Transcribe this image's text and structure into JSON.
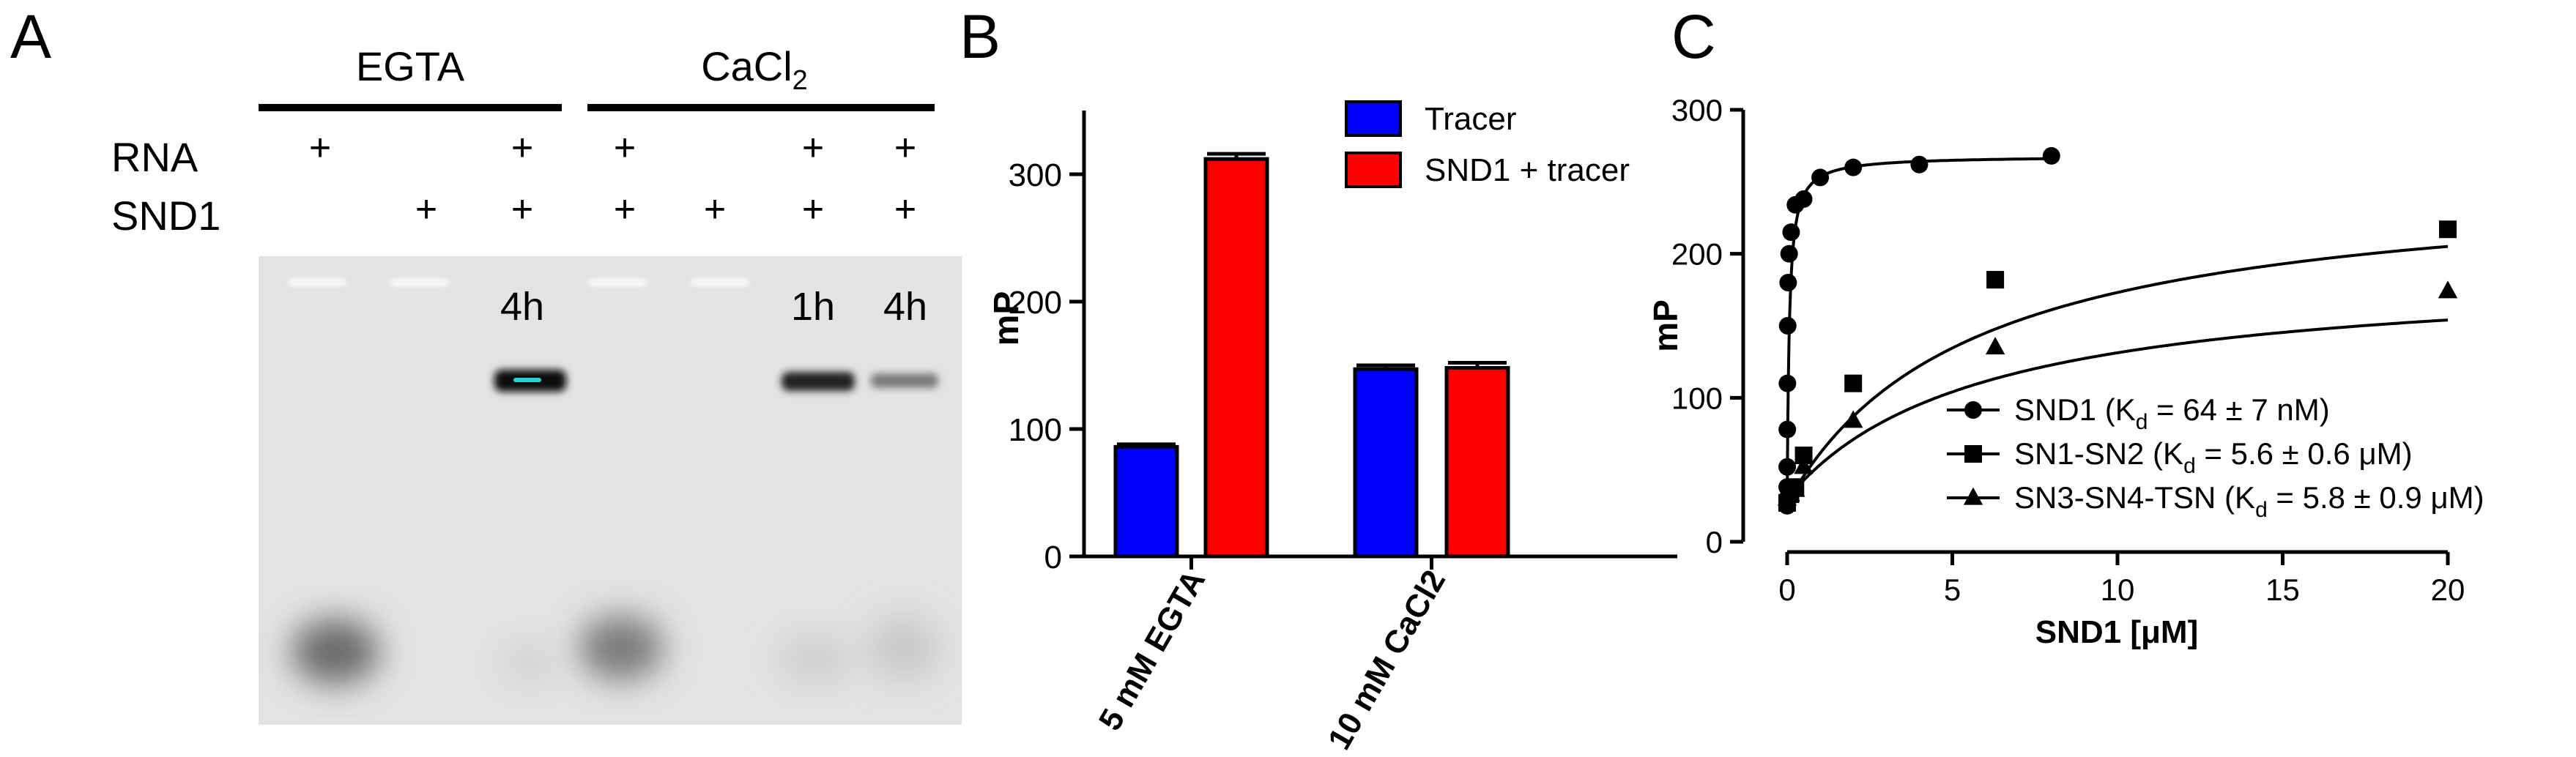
{
  "panels": {
    "a": {
      "letter": "A",
      "conditions": [
        "EGTA",
        "CaCl"
      ],
      "ca_subscript": "2",
      "row_labels": [
        "RNA",
        "SND1"
      ],
      "lanes": [
        {
          "rna": "+",
          "snd1": "",
          "time": ""
        },
        {
          "rna": "",
          "snd1": "+",
          "time": ""
        },
        {
          "rna": "+",
          "snd1": "+",
          "time": "4h"
        },
        {
          "rna": "+",
          "snd1": "+",
          "time": ""
        },
        {
          "rna": "",
          "snd1": "+",
          "time": ""
        },
        {
          "rna": "+",
          "snd1": "+",
          "time": "1h"
        },
        {
          "rna": "+",
          "snd1": "+",
          "time": "4h"
        }
      ]
    },
    "b": {
      "letter": "B"
    },
    "c": {
      "letter": "C"
    }
  },
  "colors": {
    "tracer": "#0000ff",
    "snd1_tracer": "#ff0000",
    "gel_bg": "#e5e5e5",
    "band": "#111111",
    "band_core": "#22d3d3"
  },
  "chart_data": [
    {
      "type": "bar",
      "categories": [
        "5 mM EGTA",
        "10 mM CaCl2"
      ],
      "series": [
        {
          "name": "Tracer",
          "values": [
            86,
            147
          ],
          "errors": [
            2,
            3
          ]
        },
        {
          "name": "SND1 + tracer",
          "values": [
            312,
            148
          ],
          "errors": [
            4,
            4
          ]
        }
      ],
      "xlabel": "",
      "ylabel": "mP",
      "ylim": [
        0,
        350
      ],
      "yticks": [
        0,
        100,
        200,
        300
      ],
      "legend": "top-right",
      "grid": false
    },
    {
      "type": "scatter",
      "xlabel": "SND1 [μM]",
      "ylabel": "mP",
      "xlim": [
        0,
        20
      ],
      "ylim": [
        0,
        300
      ],
      "xticks": [
        0,
        5,
        10,
        15,
        20
      ],
      "yticks": [
        0,
        100,
        200,
        300
      ],
      "legend": "bottom-right",
      "grid": false,
      "series": [
        {
          "marker": "circle",
          "label_prefix": "SND1 (K",
          "label_sub": "d",
          "label_suffix": " = 64 ± 7 nM)",
          "x": [
            0.0,
            0.0005,
            0.001,
            0.002,
            0.004,
            0.008,
            0.016,
            0.03,
            0.06,
            0.12,
            0.25,
            0.5,
            1.0,
            2.0,
            4.0,
            8.0
          ],
          "y": [
            25,
            30,
            38,
            52,
            78,
            110,
            150,
            180,
            200,
            215,
            234,
            238,
            253,
            260,
            262,
            268
          ],
          "fit": {
            "bmax": 268,
            "kd": 0.064,
            "base": 25
          }
        },
        {
          "marker": "square",
          "label_prefix": "SN1-SN2 (K",
          "label_sub": "d",
          "label_suffix": " = 5.6 ± 0.6 μM)",
          "x": [
            0.0,
            0.1,
            0.25,
            0.5,
            2.0,
            6.3,
            20.0
          ],
          "y": [
            27,
            33,
            38,
            60,
            110,
            182,
            217
          ],
          "fit": {
            "bmax": 255,
            "kd": 5.6,
            "base": 27
          }
        },
        {
          "marker": "triangle",
          "label_prefix": "SN3-SN4-TSN (K",
          "label_sub": "d",
          "label_suffix": " = 5.8 ± 0.9 μM)",
          "x": [
            0.0,
            0.1,
            0.25,
            0.5,
            2.0,
            6.3,
            20.0
          ],
          "y": [
            30,
            33,
            36,
            52,
            84,
            135,
            174
          ],
          "fit": {
            "bmax": 190,
            "kd": 5.8,
            "base": 30
          }
        }
      ]
    }
  ]
}
